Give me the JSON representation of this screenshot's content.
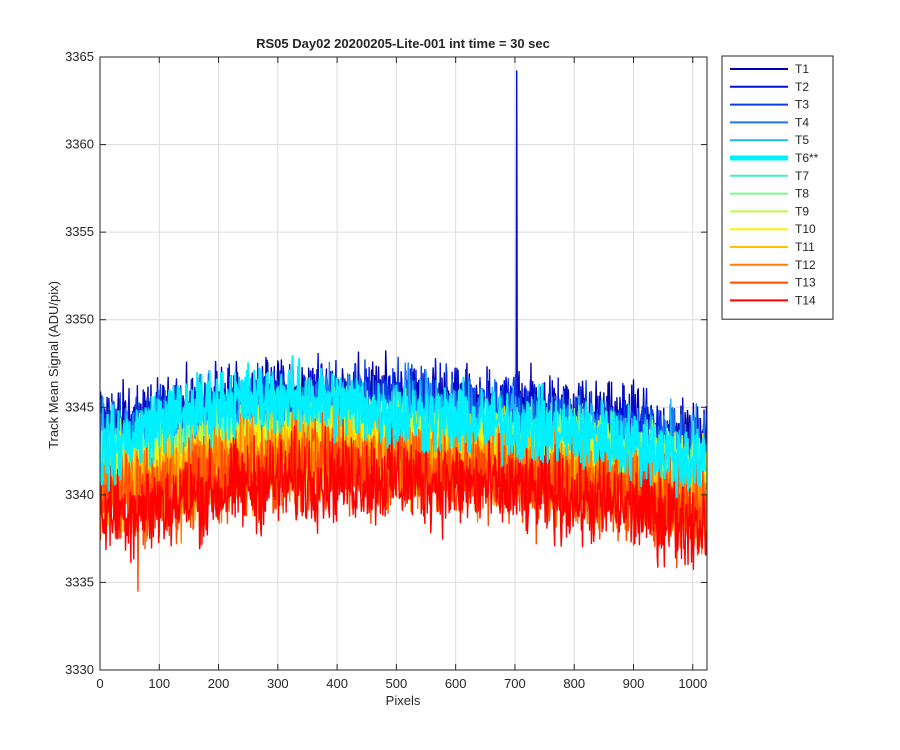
{
  "chart_data": {
    "type": "line",
    "title": "RS05 Day02 20200205-Lite-001 int time = 30 sec",
    "xlabel": "Pixels",
    "ylabel": "Track Mean Signal (ADU/pix)",
    "xlim": [
      0,
      1024
    ],
    "ylim": [
      3330,
      3365
    ],
    "x_ticks": [
      0,
      100,
      200,
      300,
      400,
      500,
      600,
      700,
      800,
      900,
      1000
    ],
    "y_ticks": [
      3330,
      3335,
      3340,
      3345,
      3350,
      3355,
      3360,
      3365
    ],
    "grid": true,
    "legend_position": "outside-top-right",
    "x_range_of_data": [
      0,
      1023
    ],
    "series": [
      {
        "name": "T1",
        "color": "#0000a6",
        "profile": [
          3344.0,
          3344.3,
          3345.0,
          3345.4,
          3345.6,
          3345.5,
          3345.1,
          3344.8,
          3344.3,
          3343.8,
          3343.0
        ],
        "noise": 1.1,
        "highlight": false
      },
      {
        "name": "T2",
        "color": "#0010d9",
        "profile": [
          3343.7,
          3344.0,
          3344.7,
          3345.2,
          3345.4,
          3345.3,
          3344.9,
          3344.6,
          3344.1,
          3343.6,
          3342.8
        ],
        "noise": 1.1,
        "highlight": false
      },
      {
        "name": "T3",
        "color": "#0a3ee6",
        "profile": [
          3343.3,
          3343.7,
          3344.4,
          3344.9,
          3345.1,
          3345.0,
          3344.7,
          3344.4,
          3343.9,
          3343.4,
          3342.6
        ],
        "noise": 1.1,
        "highlight": false
      },
      {
        "name": "T4",
        "color": "#1e78f0",
        "profile": [
          3342.9,
          3343.3,
          3344.1,
          3344.6,
          3344.8,
          3344.7,
          3344.4,
          3344.1,
          3343.6,
          3343.1,
          3342.3
        ],
        "noise": 1.1,
        "highlight": false
      },
      {
        "name": "T5",
        "color": "#20b4ff",
        "profile": [
          3342.6,
          3343.0,
          3343.9,
          3344.4,
          3344.5,
          3344.4,
          3344.1,
          3343.8,
          3343.3,
          3342.8,
          3342.0
        ],
        "noise": 1.1,
        "highlight": false
      },
      {
        "name": "T6**",
        "color": "#00f0ff",
        "profile": [
          3342.2,
          3344.2,
          3345.3,
          3345.6,
          3345.2,
          3344.6,
          3344.2,
          3343.9,
          3343.4,
          3342.9,
          3341.8
        ],
        "noise": 1.0,
        "highlight": true
      },
      {
        "name": "T7",
        "color": "#3df0c8",
        "profile": [
          3342.0,
          3342.4,
          3343.2,
          3343.8,
          3344.0,
          3343.9,
          3343.6,
          3343.3,
          3342.8,
          3342.3,
          3341.5
        ],
        "noise": 1.1,
        "highlight": false
      },
      {
        "name": "T8",
        "color": "#7ff78f",
        "profile": [
          3341.7,
          3342.1,
          3342.9,
          3343.4,
          3343.6,
          3343.5,
          3343.2,
          3342.9,
          3342.4,
          3341.9,
          3341.1
        ],
        "noise": 1.1,
        "highlight": false
      },
      {
        "name": "T9",
        "color": "#c0fb48",
        "profile": [
          3341.4,
          3341.8,
          3342.5,
          3343.1,
          3343.3,
          3343.2,
          3342.9,
          3342.6,
          3342.1,
          3341.6,
          3340.8
        ],
        "noise": 1.1,
        "highlight": false
      },
      {
        "name": "T10",
        "color": "#fff200",
        "profile": [
          3341.0,
          3341.4,
          3342.2,
          3342.7,
          3342.9,
          3342.8,
          3342.5,
          3342.2,
          3341.7,
          3341.2,
          3340.4
        ],
        "noise": 1.2,
        "highlight": false
      },
      {
        "name": "T11",
        "color": "#ffc000",
        "profile": [
          3340.6,
          3341.0,
          3341.8,
          3342.3,
          3342.5,
          3342.4,
          3342.1,
          3341.8,
          3341.3,
          3340.8,
          3340.0
        ],
        "noise": 1.2,
        "highlight": false
      },
      {
        "name": "T12",
        "color": "#ff8000",
        "profile": [
          3340.2,
          3340.6,
          3341.4,
          3341.9,
          3342.1,
          3342.0,
          3341.7,
          3341.4,
          3340.9,
          3340.4,
          3339.6
        ],
        "noise": 1.3,
        "highlight": false
      },
      {
        "name": "T13",
        "color": "#ff4a00",
        "profile": [
          3339.6,
          3340.0,
          3340.8,
          3341.4,
          3341.6,
          3341.5,
          3341.2,
          3340.9,
          3340.4,
          3339.9,
          3339.1
        ],
        "noise": 1.3,
        "highlight": false
      },
      {
        "name": "T14",
        "color": "#ff0000",
        "profile": [
          3339.0,
          3339.4,
          3340.2,
          3340.8,
          3341.0,
          3340.9,
          3340.6,
          3340.3,
          3339.8,
          3339.3,
          3338.5
        ],
        "noise": 1.3,
        "highlight": false
      }
    ],
    "spikes": [
      {
        "series": "T2",
        "x": 703,
        "y": 3364.2
      },
      {
        "series": "T13",
        "x": 64,
        "y": 3334.5
      }
    ]
  }
}
